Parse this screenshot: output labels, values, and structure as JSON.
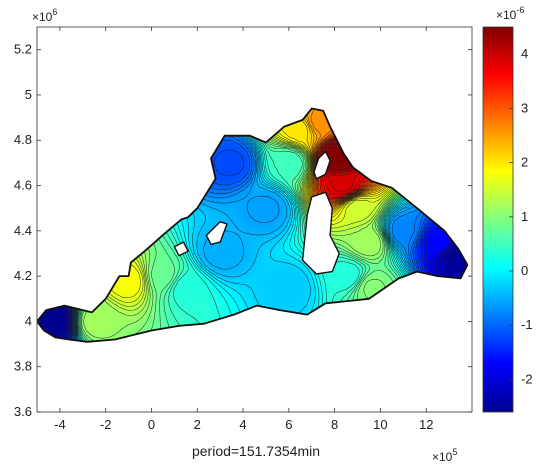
{
  "chart_data": {
    "type": "heatmap",
    "title": "",
    "xlabel": "period=151.7354min",
    "ylabel": "",
    "x_exponent_label": "×10",
    "x_exponent_power": "5",
    "y_exponent_label": "×10",
    "y_exponent_power": "6",
    "xlim": [
      -5,
      14
    ],
    "ylim": [
      3.6,
      5.3
    ],
    "x_ticks": [
      "-4",
      "-2",
      "0",
      "2",
      "4",
      "6",
      "8",
      "10",
      "12"
    ],
    "y_ticks": [
      "3.6",
      "3.8",
      "4",
      "4.2",
      "4.4",
      "4.6",
      "4.8",
      "5",
      "5.2"
    ],
    "colorbar": {
      "colormap": "jet",
      "range": [
        -2.6,
        4.5
      ],
      "exponent_label": "×10",
      "exponent_power": "-6",
      "ticks": [
        "-2",
        "-1",
        "0",
        "1",
        "2",
        "3",
        "4"
      ]
    },
    "grid": false,
    "domain_outline": [
      [
        -5,
        4.0
      ],
      [
        -4.6,
        4.05
      ],
      [
        -3.8,
        4.07
      ],
      [
        -2.6,
        4.04
      ],
      [
        -2.0,
        4.1
      ],
      [
        -1.4,
        4.2
      ],
      [
        -1.0,
        4.2
      ],
      [
        -0.9,
        4.26
      ],
      [
        -0.3,
        4.31
      ],
      [
        0.6,
        4.39
      ],
      [
        1.3,
        4.45
      ],
      [
        1.6,
        4.46
      ],
      [
        2.0,
        4.5
      ],
      [
        2.8,
        4.63
      ],
      [
        2.6,
        4.72
      ],
      [
        3.2,
        4.82
      ],
      [
        4.3,
        4.82
      ],
      [
        5.0,
        4.79
      ],
      [
        5.8,
        4.86
      ],
      [
        6.6,
        4.89
      ],
      [
        7.0,
        4.94
      ],
      [
        7.5,
        4.93
      ],
      [
        7.8,
        4.86
      ],
      [
        8.4,
        4.74
      ],
      [
        8.8,
        4.68
      ],
      [
        9.6,
        4.62
      ],
      [
        10.5,
        4.59
      ],
      [
        11.6,
        4.5
      ],
      [
        12.8,
        4.4
      ],
      [
        13.4,
        4.32
      ],
      [
        13.8,
        4.25
      ],
      [
        13.5,
        4.19
      ],
      [
        12.5,
        4.2
      ],
      [
        11.6,
        4.22
      ],
      [
        10.8,
        4.19
      ],
      [
        9.5,
        4.1
      ],
      [
        8.6,
        4.09
      ],
      [
        7.6,
        4.08
      ],
      [
        6.8,
        4.03
      ],
      [
        5.6,
        4.05
      ],
      [
        4.6,
        4.07
      ],
      [
        3.6,
        4.03
      ],
      [
        2.3,
        3.99
      ],
      [
        1.2,
        3.98
      ],
      [
        0.0,
        3.96
      ],
      [
        -1.6,
        3.92
      ],
      [
        -2.8,
        3.91
      ],
      [
        -3.6,
        3.92
      ],
      [
        -4.2,
        3.93
      ],
      [
        -4.7,
        3.96
      ],
      [
        -5,
        4.0
      ]
    ],
    "islands": [
      [
        [
          7.2,
          4.63
        ],
        [
          7.6,
          4.65
        ],
        [
          7.8,
          4.71
        ],
        [
          7.6,
          4.75
        ],
        [
          7.3,
          4.72
        ],
        [
          7.1,
          4.66
        ],
        [
          7.2,
          4.63
        ]
      ],
      [
        [
          7.0,
          4.55
        ],
        [
          7.6,
          4.57
        ],
        [
          7.9,
          4.5
        ],
        [
          7.8,
          4.38
        ],
        [
          8.2,
          4.3
        ],
        [
          7.9,
          4.22
        ],
        [
          7.2,
          4.21
        ],
        [
          6.6,
          4.27
        ],
        [
          6.7,
          4.37
        ],
        [
          6.8,
          4.47
        ],
        [
          7.0,
          4.55
        ]
      ],
      [
        [
          2.4,
          4.38
        ],
        [
          3.0,
          4.44
        ],
        [
          3.3,
          4.43
        ],
        [
          3.0,
          4.35
        ],
        [
          2.6,
          4.34
        ],
        [
          2.4,
          4.38
        ]
      ],
      [
        [
          1.0,
          4.33
        ],
        [
          1.4,
          4.35
        ],
        [
          1.6,
          4.31
        ],
        [
          1.2,
          4.29
        ],
        [
          1.0,
          4.33
        ]
      ]
    ],
    "field_sources": [
      {
        "x": -4.2,
        "y": 4.0,
        "value": -2.5
      },
      {
        "x": -2.5,
        "y": 4.0,
        "value": 1.2
      },
      {
        "x": -1.0,
        "y": 4.18,
        "value": 1.8
      },
      {
        "x": 0.5,
        "y": 4.2,
        "value": 0.8
      },
      {
        "x": 1.5,
        "y": 4.15,
        "value": 0.3
      },
      {
        "x": 3.0,
        "y": 4.3,
        "value": -0.5
      },
      {
        "x": 3.5,
        "y": 4.7,
        "value": -1.2
      },
      {
        "x": 5.0,
        "y": 4.5,
        "value": -0.6
      },
      {
        "x": 6.0,
        "y": 4.7,
        "value": 0.5
      },
      {
        "x": 6.5,
        "y": 4.85,
        "value": 2.0
      },
      {
        "x": 7.3,
        "y": 4.88,
        "value": 2.6
      },
      {
        "x": 8.2,
        "y": 4.72,
        "value": 4.5
      },
      {
        "x": 8.4,
        "y": 4.6,
        "value": 3.9
      },
      {
        "x": 9.0,
        "y": 4.5,
        "value": 1.5
      },
      {
        "x": 9.5,
        "y": 4.35,
        "value": 1.2
      },
      {
        "x": 9.6,
        "y": 4.15,
        "value": 1.0
      },
      {
        "x": 8.6,
        "y": 4.2,
        "value": 0.3
      },
      {
        "x": 11.0,
        "y": 4.4,
        "value": -0.8
      },
      {
        "x": 12.5,
        "y": 4.35,
        "value": -1.7
      },
      {
        "x": 13.4,
        "y": 4.28,
        "value": -2.4
      },
      {
        "x": 6.0,
        "y": 4.15,
        "value": -0.3
      }
    ]
  }
}
